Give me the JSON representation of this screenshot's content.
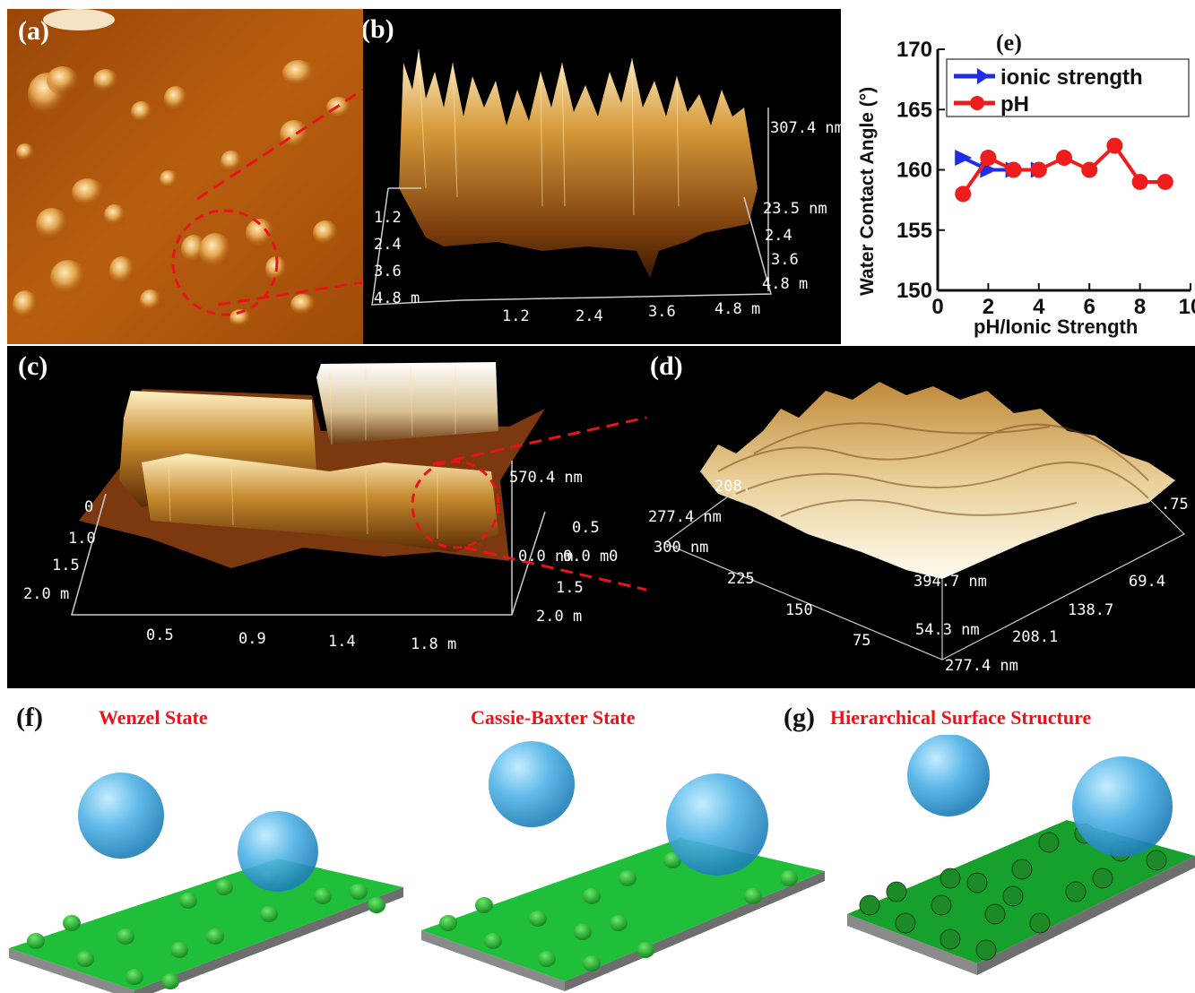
{
  "panels": {
    "a": {
      "label": "(a)"
    },
    "b": {
      "label": "(b)",
      "zmax": "307.4 nm",
      "zmin": "23.5 nm",
      "y_ticks": [
        "1.2",
        "2.4",
        "3.6",
        "4.8 m"
      ],
      "x_ticks": [
        "1.2",
        "2.4",
        "3.6",
        "4.8 m"
      ],
      "r_ticks": [
        "2.4",
        "3.6",
        "4.8 m"
      ]
    },
    "c": {
      "label": "(c)",
      "zmax": "570.4 nm",
      "zmid": "0.5",
      "zmin": "0.0 nm",
      "zmin_over": "0.0 m0",
      "y_ticks": [
        "0",
        "1.0",
        "1.5",
        "2.0 m"
      ],
      "x_ticks": [
        "0.5",
        "0.9",
        "1.4",
        "1.8 m"
      ],
      "r_ticks": [
        "1.5",
        "2.0 m"
      ]
    },
    "d": {
      "label": "(d)",
      "z_ticks": [
        "277.4 nm",
        "208.",
        "300 nm",
        ".75"
      ],
      "left_ticks": [
        "225",
        "150",
        "75"
      ],
      "center_ticks": [
        "394.7 nm",
        "54.3 nm",
        "277.4 nm"
      ],
      "right_ticks": [
        "69.4",
        "138.7",
        "208.1"
      ]
    },
    "e": {
      "label": "(e)"
    },
    "f": {
      "label": "(f)",
      "wenzel": "Wenzel State",
      "cassie": "Cassie-Baxter State"
    },
    "g": {
      "label": "(g)",
      "title": "Hierarchical Surface Structure"
    }
  },
  "chart_data": {
    "type": "line",
    "title": "(e)",
    "xlabel": "pH/Ionic Strength",
    "ylabel": "Water Contact Angle (°)",
    "xlim": [
      0,
      10
    ],
    "ylim": [
      150,
      170
    ],
    "x_ticks": [
      "0",
      "2",
      "4",
      "6",
      "8",
      "10"
    ],
    "y_ticks": [
      "150",
      "155",
      "160",
      "165",
      "170"
    ],
    "legend_position": "top",
    "series": [
      {
        "name": "ionic strength",
        "color": "#1f2ee6",
        "marker": "right-triangle",
        "x": [
          1,
          2,
          3,
          4
        ],
        "y": [
          161,
          160,
          160,
          160
        ]
      },
      {
        "name": "pH",
        "color": "#ee1c1c",
        "marker": "circle",
        "x": [
          1,
          2,
          3,
          4,
          5,
          6,
          7,
          8,
          9
        ],
        "y": [
          158,
          161,
          160,
          160,
          161,
          160,
          162,
          159,
          159
        ]
      }
    ]
  }
}
